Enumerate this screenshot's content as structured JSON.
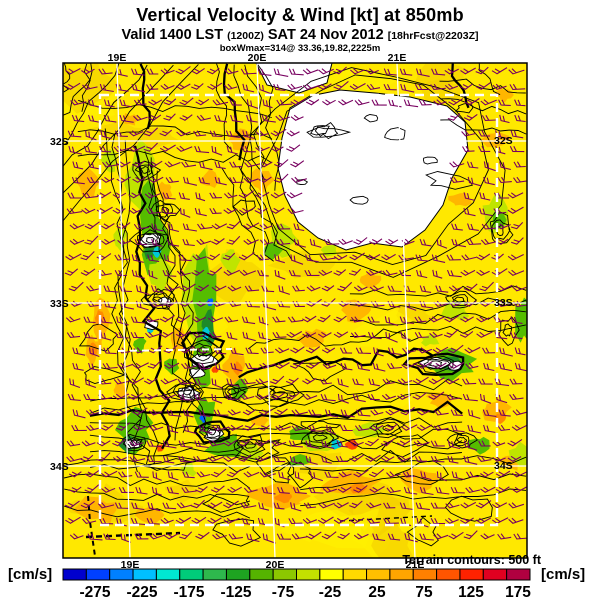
{
  "header": {
    "title": "Vertical Velocity & Wind [kt] at 850mb",
    "valid_prefix": "Valid 1400 LST",
    "valid_utc": "(1200Z)",
    "valid_date": "SAT 24 Nov 2012",
    "fcst_note": "[18hrFcst@2203Z]",
    "wmax_note": "boxWmax=314@ 33.36,19.82,2225m"
  },
  "map": {
    "terrain_note": "Terrain contours: 500 ft",
    "lon_labels": [
      "19E",
      "20E",
      "21E"
    ],
    "lat_labels": [
      "32S",
      "33S",
      "34S"
    ],
    "palette": {
      "background": "#ffe800",
      "yellow_light": "#fff200",
      "yellow_dark": "#f2cc00",
      "orange": "#ffb000",
      "orange_deep": "#ff8a00",
      "red": "#ff4800",
      "green_light": "#bfe400",
      "green": "#55bd00",
      "green_dark": "#1d8a28",
      "cyan": "#00c8d8",
      "blue": "#0060ff",
      "white_core": "#ffffff",
      "contour": "#000000",
      "barb": "#780060",
      "grid": "#ffffff"
    }
  },
  "colorbar": {
    "units": "[cm/s]",
    "tick_labels": [
      "-275",
      "-225",
      "-175",
      "-125",
      "-75",
      "-25",
      "25",
      "75",
      "125",
      "175"
    ],
    "colors": [
      "#0000cd",
      "#0040ff",
      "#0080ff",
      "#00c0ff",
      "#00e8d2",
      "#00cc7a",
      "#2eb84d",
      "#1ea321",
      "#55b400",
      "#8cc800",
      "#c3e000",
      "#ffff00",
      "#ffd900",
      "#ffbf00",
      "#ffa500",
      "#ff8000",
      "#ff5500",
      "#ff2200",
      "#e00020",
      "#b00040"
    ]
  },
  "chart_data": {
    "type": "heatmap",
    "title": "Vertical Velocity & Wind [kt] at 850mb",
    "subtitle": "Valid 1400 LST (1200Z) SAT 24 Nov 2012 [18hrFcst@2203Z]",
    "annotation": "boxWmax=314@ 33.36,19.82,2225m",
    "field": "vertical velocity",
    "units": "cm/s",
    "level": "850mb",
    "x_ticks": [
      "19E",
      "20E",
      "21E"
    ],
    "y_ticks": [
      "32S",
      "33S",
      "34S"
    ],
    "colorbar_levels": [
      -300,
      -275,
      -250,
      -225,
      -200,
      -175,
      -150,
      -125,
      -100,
      -75,
      -50,
      -25,
      0,
      25,
      50,
      75,
      100,
      125,
      150,
      175,
      200
    ],
    "colorbar_tick_labels": [
      -275,
      -225,
      -175,
      -125,
      -75,
      -25,
      25,
      75,
      125,
      175
    ],
    "colorbar_colors": [
      "#0000cd",
      "#0040ff",
      "#0080ff",
      "#00c0ff",
      "#00e8d2",
      "#00cc7a",
      "#2eb84d",
      "#1ea321",
      "#55b400",
      "#8cc800",
      "#c3e000",
      "#ffff00",
      "#ffd900",
      "#ffbf00",
      "#ffa500",
      "#ff8000",
      "#ff5500",
      "#ff2200",
      "#e00020",
      "#b00040"
    ],
    "overlays": [
      "wind barbs [kt]",
      "terrain contours every 500 ft",
      "lat/lon gridlines",
      "model nest outline"
    ],
    "legend_note": "Terrain contours: 500 ft"
  }
}
